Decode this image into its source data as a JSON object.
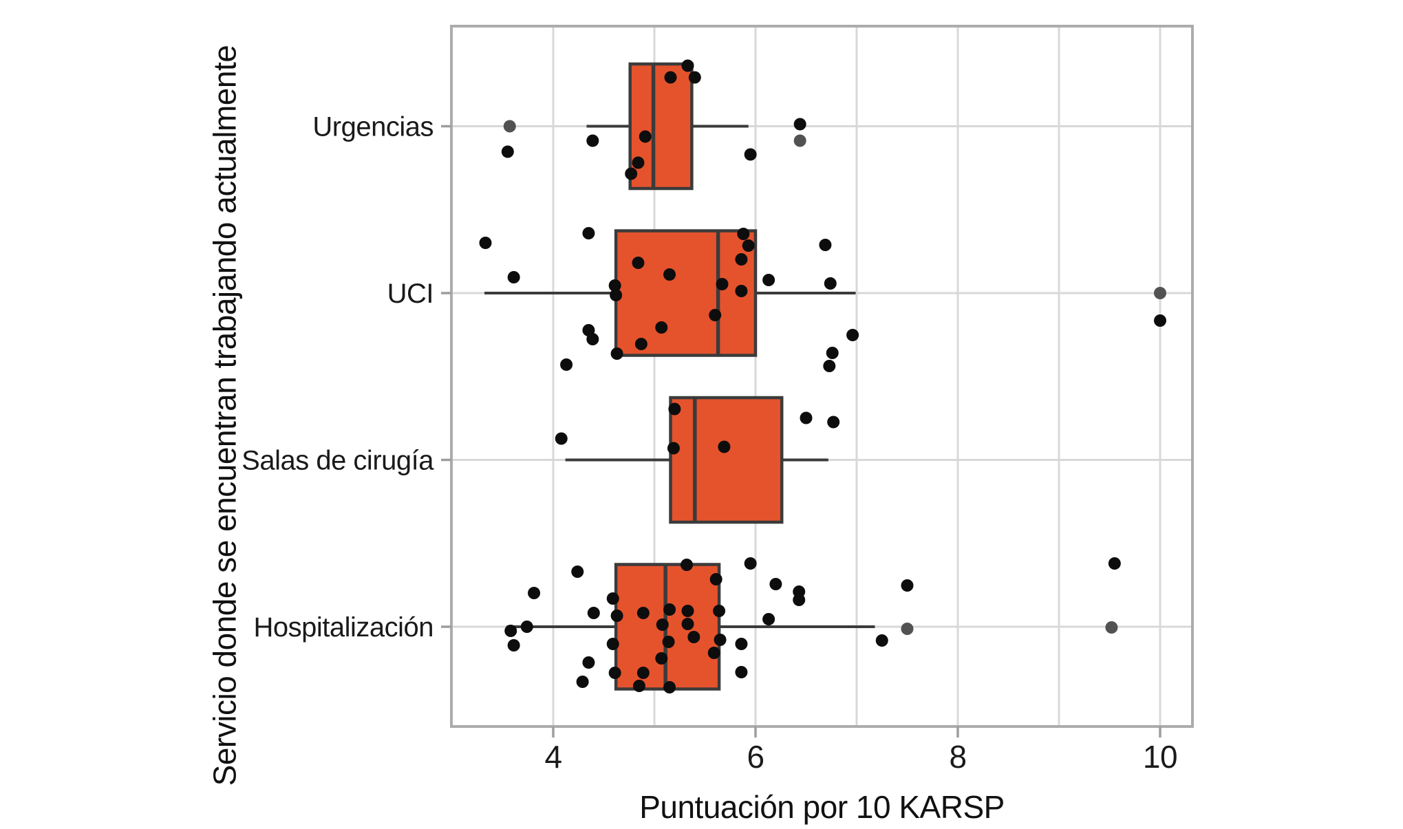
{
  "chart_data": {
    "type": "boxplot",
    "orientation": "horizontal",
    "title": "",
    "xlabel": "Puntuación por 10 KARSP",
    "ylabel": "Servicio donde se encuentran trabajando actualmente",
    "xlim": [
      3.0,
      10.3
    ],
    "x_major_ticks": [
      4,
      6,
      8,
      10
    ],
    "x_tick_labels": [
      "4",
      "6",
      "8",
      "10"
    ],
    "x_gridline_values": [
      4,
      5,
      6,
      7,
      8,
      9,
      10
    ],
    "grid": "on",
    "legend": "none",
    "categories": [
      {
        "label": "Urgencias",
        "box": {
          "whisker_low": 4.33,
          "q1": 4.76,
          "median": 4.99,
          "q3": 5.37,
          "whisker_high": 5.93
        },
        "points": [
          [
            3.55,
            37
          ],
          [
            4.39,
            21
          ],
          [
            4.91,
            15
          ],
          [
            4.84,
            53
          ],
          [
            4.77,
            69
          ],
          [
            5.33,
            -88
          ],
          [
            5.16,
            -71
          ],
          [
            5.4,
            -71
          ],
          [
            5.95,
            41
          ],
          [
            6.44,
            -3
          ]
        ],
        "gray_points": [
          [
            3.57,
            0
          ],
          [
            6.44,
            21
          ]
        ]
      },
      {
        "label": "UCI",
        "box": {
          "whisker_low": 3.32,
          "q1": 4.62,
          "median": 5.63,
          "q3": 6.0,
          "whisker_high": 6.99
        },
        "points": [
          [
            3.33,
            -73
          ],
          [
            3.61,
            -23
          ],
          [
            4.35,
            -87
          ],
          [
            4.13,
            104
          ],
          [
            4.35,
            54
          ],
          [
            4.39,
            67
          ],
          [
            4.61,
            -11
          ],
          [
            4.62,
            3
          ],
          [
            4.84,
            -44
          ],
          [
            5.15,
            -27
          ],
          [
            5.67,
            -13
          ],
          [
            5.88,
            -86
          ],
          [
            5.93,
            -69
          ],
          [
            5.86,
            -49
          ],
          [
            5.86,
            -3
          ],
          [
            5.6,
            32
          ],
          [
            5.07,
            50
          ],
          [
            4.87,
            74
          ],
          [
            4.63,
            88
          ],
          [
            6.13,
            -19
          ],
          [
            6.69,
            -70
          ],
          [
            6.74,
            -14
          ],
          [
            6.96,
            61
          ],
          [
            6.76,
            87
          ],
          [
            6.73,
            106
          ],
          [
            10.0,
            40
          ]
        ],
        "gray_points": [
          [
            10.0,
            0
          ]
        ]
      },
      {
        "label": "Salas de cirugía",
        "box": {
          "whisker_low": 4.12,
          "q1": 5.16,
          "median": 5.4,
          "q3": 6.26,
          "whisker_high": 6.72
        },
        "points": [
          [
            4.08,
            -31
          ],
          [
            5.2,
            -74
          ],
          [
            5.19,
            -17
          ],
          [
            5.69,
            -19
          ],
          [
            6.5,
            -61
          ],
          [
            6.77,
            -55
          ]
        ],
        "gray_points": []
      },
      {
        "label": "Hospitalización",
        "box": {
          "whisker_low": 3.54,
          "q1": 4.62,
          "median": 5.11,
          "q3": 5.64,
          "whisker_high": 7.18
        },
        "points": [
          [
            4.24,
            -80
          ],
          [
            3.81,
            -49
          ],
          [
            3.58,
            6
          ],
          [
            3.74,
            0
          ],
          [
            3.61,
            27
          ],
          [
            4.4,
            -20
          ],
          [
            4.59,
            -41
          ],
          [
            4.63,
            -16
          ],
          [
            4.59,
            25
          ],
          [
            4.35,
            52
          ],
          [
            4.29,
            80
          ],
          [
            4.61,
            67
          ],
          [
            4.89,
            -20
          ],
          [
            4.85,
            86
          ],
          [
            4.89,
            67
          ],
          [
            5.08,
            -3
          ],
          [
            5.15,
            -25
          ],
          [
            5.14,
            22
          ],
          [
            5.07,
            46
          ],
          [
            5.15,
            88
          ],
          [
            5.33,
            -23
          ],
          [
            5.33,
            -4
          ],
          [
            5.39,
            15
          ],
          [
            5.32,
            -90
          ],
          [
            5.61,
            -69
          ],
          [
            5.64,
            -23
          ],
          [
            5.65,
            19
          ],
          [
            5.59,
            38
          ],
          [
            5.86,
            25
          ],
          [
            5.86,
            66
          ],
          [
            5.95,
            -92
          ],
          [
            6.2,
            -62
          ],
          [
            6.43,
            -51
          ],
          [
            6.43,
            -39
          ],
          [
            6.13,
            -11
          ],
          [
            7.5,
            -60
          ],
          [
            7.25,
            20
          ],
          [
            9.55,
            -92
          ]
        ],
        "gray_points": [
          [
            7.5,
            3
          ],
          [
            9.52,
            1
          ]
        ]
      }
    ],
    "style": {
      "box_fill": "#E5532D",
      "box_stroke": "#3B3B3B",
      "point_color": "#0D0D0D",
      "gray_point_color": "#525252",
      "gridline_color": "#D8D8D8",
      "frame_color": "#ACACAC",
      "tick_color": "#9E9E9E",
      "text_color": "#1A1A1A"
    }
  }
}
